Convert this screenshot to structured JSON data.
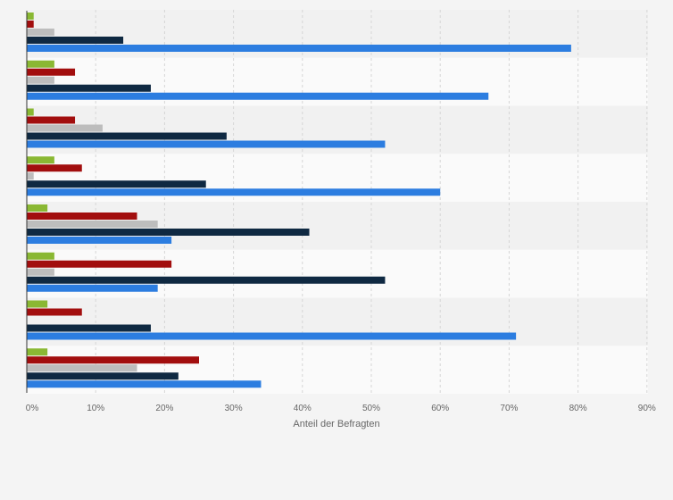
{
  "chart_data": {
    "type": "bar",
    "orientation": "horizontal",
    "xlabel": "Anteil der Befragten",
    "xlim": [
      0,
      90
    ],
    "ticks": [
      0,
      10,
      20,
      30,
      40,
      50,
      60,
      70,
      80,
      90
    ],
    "tick_suffix": "%",
    "grid": true,
    "series_colors": [
      "#8ab833",
      "#a20e0e",
      "#bdbdbd",
      "#0f2942",
      "#2c7de0"
    ],
    "groups": [
      [
        1,
        1,
        4,
        14,
        79
      ],
      [
        4,
        7,
        4,
        18,
        67
      ],
      [
        1,
        7,
        11,
        29,
        52
      ],
      [
        4,
        8,
        1,
        26,
        60
      ],
      [
        3,
        16,
        19,
        41,
        21
      ],
      [
        4,
        21,
        4,
        52,
        19
      ],
      [
        3,
        8,
        0,
        18,
        71
      ],
      [
        3,
        25,
        16,
        22,
        34
      ]
    ]
  }
}
